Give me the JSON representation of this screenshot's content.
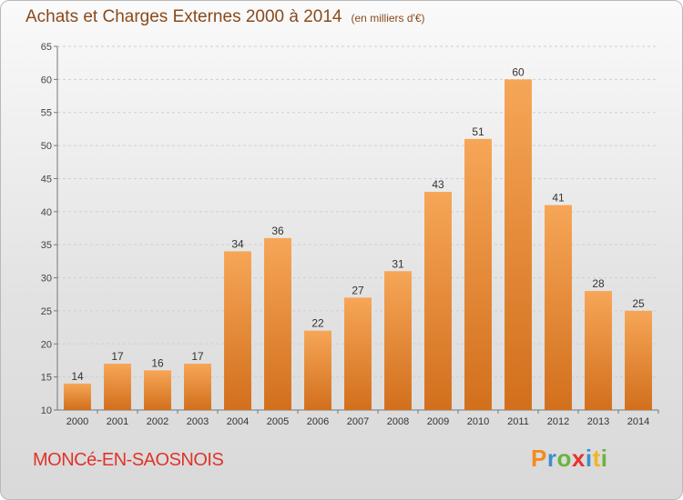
{
  "header": {
    "title": "Achats et Charges Externes 2000 à 2014",
    "subtitle": "(en milliers d'€)"
  },
  "footer": {
    "commune": "MONCé-EN-SAOSNOIS",
    "logo_text": "Proxiti",
    "logo_colors": [
      "#f28c1e",
      "#3a8fd0",
      "#6cb33f",
      "#e8312f",
      "#3a8fd0",
      "#f2b61e",
      "#6cb33f"
    ]
  },
  "colors": {
    "bar_top": "#f6a657",
    "bar_bottom": "#d26f1c",
    "title": "#8a4a1c",
    "commune": "#e0342a"
  },
  "chart_data": {
    "type": "bar",
    "title": "Achats et Charges Externes 2000 à 2014",
    "subtitle": "(en milliers d'€)",
    "categories": [
      "2000",
      "2001",
      "2002",
      "2003",
      "2004",
      "2005",
      "2006",
      "2007",
      "2008",
      "2009",
      "2010",
      "2011",
      "2012",
      "2013",
      "2014"
    ],
    "values": [
      14,
      17,
      16,
      17,
      34,
      36,
      22,
      27,
      31,
      43,
      51,
      60,
      41,
      28,
      25
    ],
    "ylim": [
      10,
      65
    ],
    "yticks": [
      10,
      15,
      20,
      25,
      30,
      35,
      40,
      45,
      50,
      55,
      60,
      65
    ],
    "grid": true,
    "data_labels": true
  }
}
